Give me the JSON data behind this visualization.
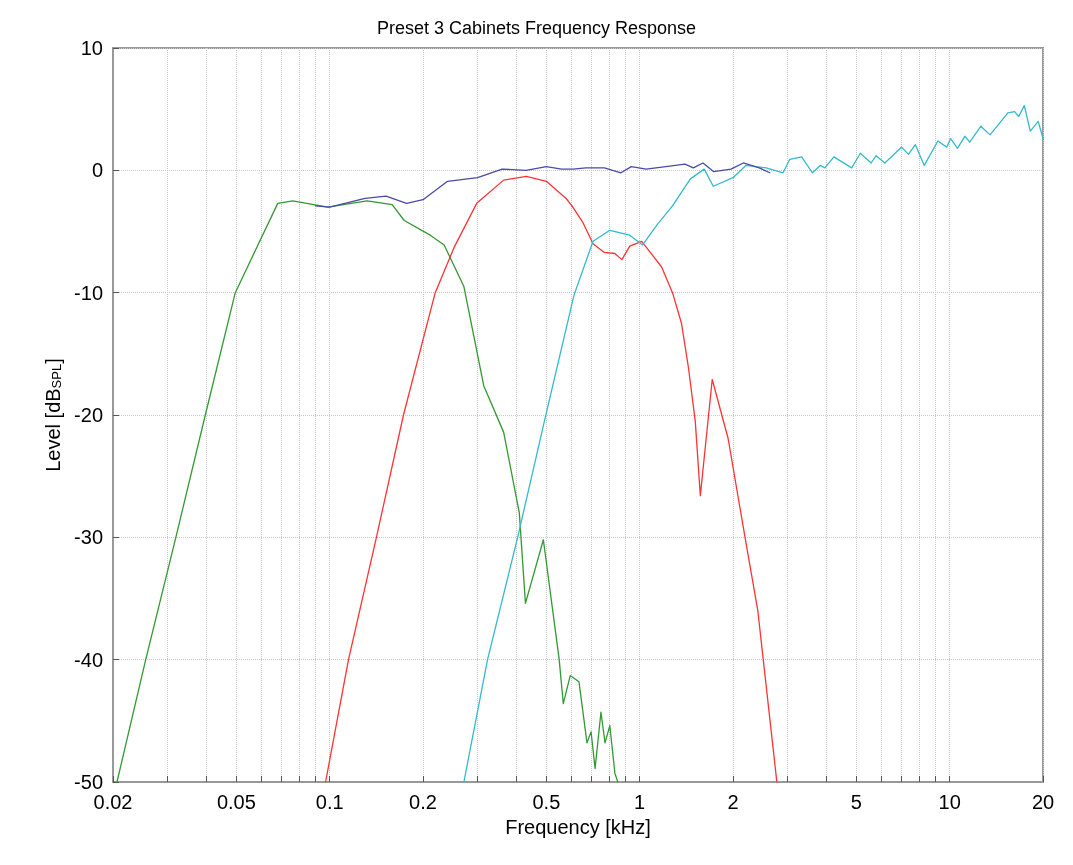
{
  "chart_data": {
    "type": "line",
    "title": "Preset 3 Cabinets Frequency Response",
    "xlabel": "Frequency [kHz]",
    "ylabel": "Level [dB$_{SPL}$]",
    "log": "x",
    "grid": true,
    "marker": "none",
    "line_style": "solid",
    "xlim": [
      0.02,
      20
    ],
    "ylim": [
      -50,
      10
    ],
    "xticks": [
      0.02,
      {
        "value": 0.03,
        "label": null
      },
      {
        "value": 0.04,
        "label": null
      },
      0.05,
      {
        "value": 0.06,
        "label": null
      },
      {
        "value": 0.07,
        "label": null
      },
      {
        "value": 0.08,
        "label": null
      },
      {
        "value": 0.09,
        "label": null
      },
      0.1,
      0.2,
      {
        "value": 0.3,
        "label": null
      },
      {
        "value": 0.4,
        "label": null
      },
      0.5,
      {
        "value": 0.6,
        "label": null
      },
      {
        "value": 0.7,
        "label": null
      },
      {
        "value": 0.8,
        "label": null
      },
      {
        "value": 0.9,
        "label": null
      },
      1,
      2,
      {
        "value": 3,
        "label": null
      },
      {
        "value": 4,
        "label": null
      },
      5,
      {
        "value": 6,
        "label": null
      },
      {
        "value": 7,
        "label": null
      },
      {
        "value": 8,
        "label": null
      },
      {
        "value": 9,
        "label": null
      },
      10,
      20
    ],
    "yticks": [
      -50,
      -40,
      -30,
      -20,
      -10,
      0,
      10
    ],
    "series": [
      {
        "color": "#339933",
        "x": [
          0.0206,
          0.0255,
          0.0319,
          0.0397,
          0.0496,
          0.068,
          0.076,
          0.0986,
          0.132,
          0.159,
          0.174,
          0.211,
          0.234,
          0.271,
          0.314,
          0.364,
          0.409,
          0.428,
          0.489,
          0.55,
          0.567,
          0.597,
          0.637,
          0.676,
          0.697,
          0.718,
          0.75,
          0.773,
          0.801,
          0.832,
          0.85
        ],
        "values": [
          -50,
          -40,
          -30,
          -20,
          -10,
          -2.7,
          -2.5,
          -3.0,
          -2.5,
          -2.8,
          -4.1,
          -5.3,
          -6.1,
          -9.5,
          -17.6,
          -21.4,
          -28,
          -35.4,
          -30.2,
          -40,
          -43.6,
          -41.3,
          -41.8,
          -46.8,
          -45.9,
          -48.9,
          -44.3,
          -46.8,
          -45.4,
          -49.3,
          -50
        ]
      },
      {
        "color": "#ff3333",
        "x": [
          0.097,
          0.115,
          0.1415,
          0.173,
          0.219,
          0.252,
          0.298,
          0.364,
          0.431,
          0.5,
          0.579,
          0.605,
          0.657,
          0.707,
          0.767,
          0.832,
          0.876,
          0.929,
          1.015,
          1.177,
          1.276,
          1.364,
          1.436,
          1.511,
          1.569,
          1.714,
          1.928,
          2.187,
          2.405,
          2.77
        ],
        "values": [
          -50,
          -40,
          -30,
          -20,
          -10,
          -6.3,
          -2.7,
          -0.8,
          -0.5,
          -0.9,
          -2.3,
          -2.9,
          -4.3,
          -6.0,
          -6.7,
          -6.8,
          -7.3,
          -6.2,
          -5.8,
          -7.9,
          -10.0,
          -12.5,
          -16.1,
          -20.5,
          -26.6,
          -17.1,
          -21.9,
          -30.0,
          -36.0,
          -50
        ]
      },
      {
        "color": "#33bbcc",
        "x": [
          0.271,
          0.323,
          0.404,
          0.496,
          0.614,
          0.707,
          0.801,
          0.929,
          1.022,
          1.142,
          1.276,
          1.457,
          1.615,
          1.727,
          2.0,
          2.2,
          2.56,
          2.9,
          3.05,
          3.33,
          3.61,
          3.82,
          3.96,
          4.23,
          4.83,
          5.15,
          5.58,
          5.79,
          6.18,
          7.0,
          7.36,
          7.75,
          8.28,
          9.16,
          9.79,
          10.07,
          10.6,
          11.2,
          11.6,
          12.6,
          13.5,
          15.4,
          16.2,
          16.7,
          17.4,
          18.2,
          19.3,
          20
        ],
        "values": [
          -50,
          -40,
          -30,
          -20.2,
          -10.2,
          -5.8,
          -4.9,
          -5.3,
          -6.1,
          -4.4,
          -2.9,
          -0.7,
          0.1,
          -1.3,
          -0.6,
          0.4,
          0.2,
          -0.2,
          0.9,
          1.1,
          -0.2,
          0.4,
          0.2,
          1.1,
          0.2,
          1.4,
          0.6,
          1.2,
          0.6,
          1.9,
          1.3,
          2.1,
          0.4,
          2.4,
          1.9,
          2.6,
          1.8,
          2.8,
          2.3,
          3.6,
          2.9,
          4.7,
          4.8,
          4.4,
          5.3,
          3.2,
          4.0,
          2.6
        ]
      },
      {
        "color": "#4a4aaa",
        "x": [
          0.09,
          0.1,
          0.13,
          0.152,
          0.177,
          0.2,
          0.24,
          0.3,
          0.36,
          0.43,
          0.5,
          0.56,
          0.61,
          0.67,
          0.77,
          0.87,
          0.94,
          1.05,
          1.4,
          1.49,
          1.6,
          1.73,
          1.97,
          2.16,
          2.43,
          2.63
        ],
        "values": [
          -2.9,
          -3.0,
          -2.3,
          -2.1,
          -2.7,
          -2.4,
          -0.9,
          -0.6,
          0.1,
          0.0,
          0.3,
          0.1,
          0.1,
          0.2,
          0.2,
          -0.2,
          0.3,
          0.1,
          0.5,
          0.2,
          0.6,
          -0.1,
          0.1,
          0.6,
          0.2,
          -0.2
        ]
      }
    ]
  }
}
